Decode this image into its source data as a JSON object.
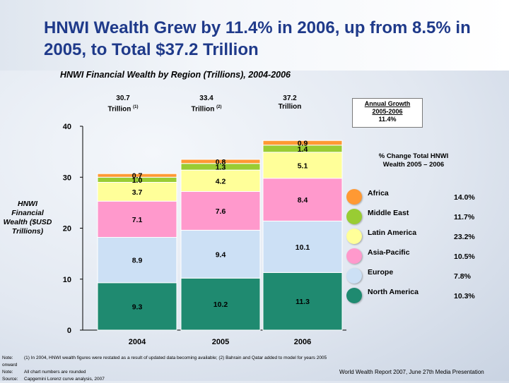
{
  "slide": {
    "title": "HNWI Wealth Grew by 11.4% in 2006, up from 8.5% in 2005, to Total $37.2 Trillion",
    "chart_title": "HNWI Financial Wealth by Region (Trillions), 2004-2006",
    "y_axis_label": "HNWI Financial Wealth ($USD Trillions)",
    "totals": [
      {
        "value": "30.7",
        "unit": "Trillion",
        "note": "(1)"
      },
      {
        "value": "33.4",
        "unit": "Trillion",
        "note": "(2)"
      },
      {
        "value": "37.2",
        "unit": "Trillion",
        "note": ""
      }
    ],
    "annual_growth": {
      "line1": "Annual Growth",
      "line2": "2005-2006",
      "value": "11.4%"
    },
    "change_header": "% Change Total HNWI Wealth 2005 – 2006",
    "legend": [
      {
        "name": "Africa",
        "pct": "14.0%",
        "color": "#ff9933"
      },
      {
        "name": "Middle East",
        "pct": "11.7%",
        "color": "#99cc33"
      },
      {
        "name": "Latin America",
        "pct": "23.2%",
        "color": "#ffff99"
      },
      {
        "name": "Asia-Pacific",
        "pct": "10.5%",
        "color": "#ff99cc"
      },
      {
        "name": "Europe",
        "pct": "7.8%",
        "color": "#cce0f5"
      },
      {
        "name": "North America",
        "pct": "10.3%",
        "color": "#1f8a70"
      }
    ],
    "footnotes": [
      {
        "label": "Note:",
        "text": "(1) In 2004, HNWI wealth figures were restated as a result of updated data becoming available; (2) Bahrain and Qatar added to model for years 2005 onward"
      },
      {
        "label": "Note:",
        "text": "All chart numbers are rounded"
      },
      {
        "label": "Source:",
        "text": "Capgemini Lorenz curve analysis, 2007"
      }
    ],
    "report": "World Wealth Report 2007, June 27th Media Presentation"
  },
  "chart_data": {
    "type": "bar",
    "stacked": true,
    "categories": [
      "2004",
      "2005",
      "2006"
    ],
    "ylim": [
      0,
      40
    ],
    "yticks": [
      0,
      10,
      20,
      30,
      40
    ],
    "series": [
      {
        "name": "North America",
        "color": "#1f8a70",
        "values": [
          9.3,
          10.2,
          11.3
        ],
        "labels": [
          "9.3",
          "10.2",
          "11.3"
        ]
      },
      {
        "name": "Europe",
        "color": "#cce0f5",
        "values": [
          8.9,
          9.4,
          10.1
        ],
        "labels": [
          "8.9",
          "9.4",
          "10.1"
        ]
      },
      {
        "name": "Asia-Pacific",
        "color": "#ff99cc",
        "values": [
          7.1,
          7.6,
          8.4
        ],
        "labels": [
          "7.1",
          "7.6",
          "8.4"
        ]
      },
      {
        "name": "Latin America",
        "color": "#ffff99",
        "values": [
          3.7,
          4.2,
          5.1
        ],
        "labels": [
          "3.7",
          "4.2",
          "5.1"
        ]
      },
      {
        "name": "Middle East",
        "color": "#99cc33",
        "values": [
          1.0,
          1.3,
          1.4
        ],
        "labels": [
          "1.0",
          "1.3",
          "1.4"
        ]
      },
      {
        "name": "Africa",
        "color": "#ff9933",
        "values": [
          0.7,
          0.8,
          0.9
        ],
        "labels": [
          "0.7",
          "0.8",
          "0.9"
        ]
      }
    ]
  }
}
